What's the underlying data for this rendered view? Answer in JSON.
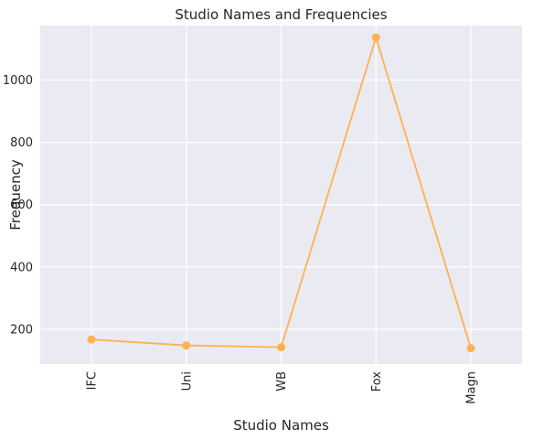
{
  "chart_data": {
    "type": "line",
    "title": "Studio Names and Frequencies",
    "xlabel": "Studio Names",
    "ylabel": "Frequency",
    "categories": [
      "IFC",
      "Uni",
      "WB",
      "Fox",
      "Magn"
    ],
    "values": [
      167,
      148,
      142,
      1137,
      139
    ],
    "ylim": [
      88,
      1175
    ],
    "yticks": [
      200,
      400,
      600,
      800,
      1000
    ],
    "grid": true,
    "line_color": "#FFB14E",
    "plot_background": "#EAEAF2",
    "grid_color": "#FFFFFF"
  }
}
